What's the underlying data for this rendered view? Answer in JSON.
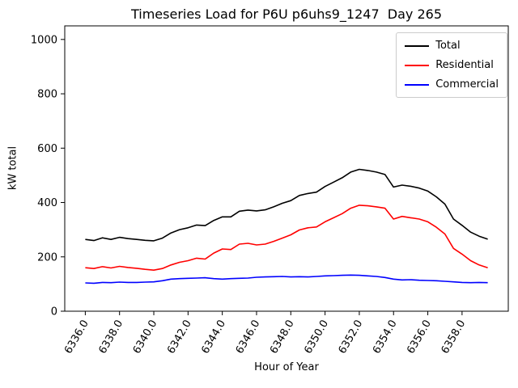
{
  "chart_data": {
    "type": "line",
    "title": "Timeseries Load for P6U p6uhs9_1247  Day 265",
    "xlabel": "Hour of Year",
    "ylabel": "kW total",
    "xlim": [
      6334.8,
      6360.7
    ],
    "ylim": [
      0,
      1050
    ],
    "yticks": [
      0,
      200,
      400,
      600,
      800,
      1000
    ],
    "xticks": [
      6336,
      6338,
      6340,
      6342,
      6344,
      6346,
      6348,
      6350,
      6352,
      6354,
      6356,
      6358
    ],
    "xtick_labels": [
      "6336.0",
      "6338.0",
      "6340.0",
      "6342.0",
      "6344.0",
      "6346.0",
      "6348.0",
      "6350.0",
      "6352.0",
      "6354.0",
      "6356.0",
      "6358.0"
    ],
    "grid": false,
    "legend_position": "upper right",
    "x": [
      6336.0,
      6336.5,
      6337.0,
      6337.5,
      6338.0,
      6338.5,
      6339.0,
      6339.5,
      6340.0,
      6340.5,
      6341.0,
      6341.5,
      6342.0,
      6342.5,
      6343.0,
      6343.5,
      6344.0,
      6344.5,
      6345.0,
      6345.5,
      6346.0,
      6346.5,
      6347.0,
      6347.5,
      6348.0,
      6348.5,
      6349.0,
      6349.5,
      6350.0,
      6350.5,
      6351.0,
      6351.5,
      6352.0,
      6352.5,
      6353.0,
      6353.5,
      6354.0,
      6354.5,
      6355.0,
      6355.5,
      6356.0,
      6356.5,
      6357.0,
      6357.5,
      6358.0,
      6358.5,
      6359.0,
      6359.5
    ],
    "series": [
      {
        "name": "Total",
        "color": "#000000",
        "values": [
          264,
          260,
          270,
          264,
          272,
          267,
          264,
          261,
          259,
          269,
          288,
          300,
          307,
          317,
          315,
          334,
          347,
          347,
          368,
          372,
          369,
          373,
          384,
          397,
          407,
          426,
          433,
          438,
          459,
          475,
          491,
          512,
          522,
          518,
          512,
          503,
          457,
          464,
          460,
          453,
          442,
          421,
          394,
          339,
          316,
          291,
          276,
          265
        ]
      },
      {
        "name": "Residential",
        "color": "#ff0000",
        "values": [
          160,
          157,
          164,
          159,
          165,
          161,
          158,
          154,
          151,
          157,
          170,
          180,
          186,
          195,
          192,
          214,
          229,
          227,
          247,
          250,
          244,
          247,
          257,
          269,
          281,
          299,
          307,
          310,
          329,
          344,
          359,
          379,
          390,
          388,
          384,
          379,
          339,
          349,
          344,
          339,
          329,
          309,
          284,
          231,
          210,
          186,
          170,
          160
        ]
      },
      {
        "name": "Commercial",
        "color": "#0000ff",
        "values": [
          104,
          103,
          106,
          105,
          107,
          106,
          106,
          107,
          108,
          112,
          118,
          120,
          121,
          122,
          123,
          120,
          118,
          120,
          121,
          122,
          125,
          126,
          127,
          128,
          126,
          127,
          126,
          128,
          130,
          131,
          132,
          133,
          132,
          130,
          128,
          124,
          118,
          115,
          116,
          114,
          113,
          112,
          110,
          108,
          106,
          105,
          106,
          105
        ]
      }
    ]
  }
}
